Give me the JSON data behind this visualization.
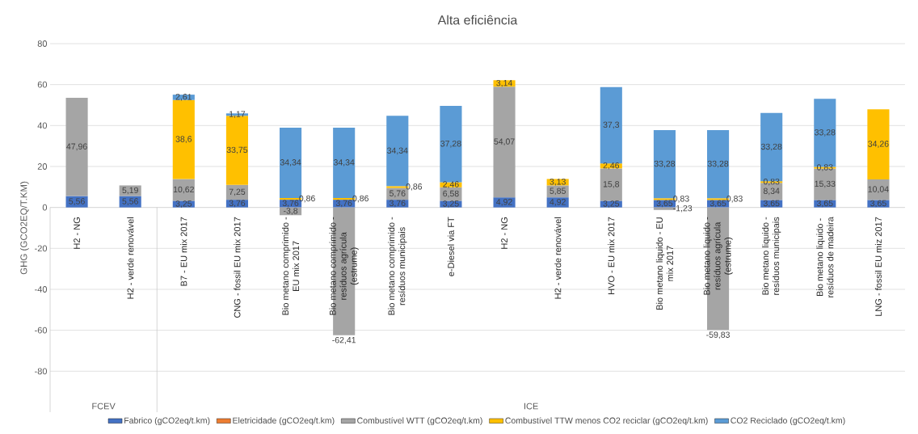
{
  "chart_data": {
    "type": "bar",
    "title": "Alta eficiência",
    "ylabel": "GHG (GCO2EQ/T.KM)",
    "stacked": true,
    "grid": "y",
    "legend": "bottom",
    "categories": [
      "H2 - NG",
      "H2 - verde renovável",
      "B7 - EU mix 2017",
      "CNG - fossil EU mix 2017",
      "Bio metano comprimido - EU mix 2017",
      "Bio metano comprimido - resíduos agrícula (estrume)",
      "Bio metano comprimido - resíduos municipais",
      "e-Diesel via FT",
      "H2 - NG",
      "H2 - verde renovável",
      "HVO - EU mix 2017",
      "Bio metano liquido - EU mix 2017",
      "Bio metano liquido - resíduos agrícula (estrume)",
      "Bio metano liquido - resíduos municipais",
      "Bio metano liquido - resíduos de madeira",
      "LNG - fossil EU miz 2017"
    ],
    "ylim": [
      -100,
      80
    ],
    "yticks": [
      -80,
      -60,
      -40,
      -20,
      0,
      20,
      40,
      60,
      80
    ],
    "annotations": [
      "FCEV",
      "ICE"
    ],
    "series": [
      {
        "name": "Fabrico (gCO2eq/t.km)",
        "color": "#4472c4",
        "values": [
          5.56,
          5.56,
          3.25,
          3.76,
          3.76,
          3.76,
          3.76,
          3.25,
          4.92,
          4.92,
          3.25,
          3.65,
          3.65,
          3.65,
          3.65,
          3.65
        ],
        "value_labels": [
          "5,56",
          "5,56",
          "3,25",
          "3,76",
          "3,76",
          "3,76",
          "3,76",
          "3,25",
          "4,92",
          "4,92",
          "3,25",
          "3,65",
          "3,65",
          "3,65",
          "3,65",
          "3,65"
        ]
      },
      {
        "name": "Eletricidade (gCO2eq/t.km)",
        "color": "#ed7d31",
        "values": [
          null,
          null,
          null,
          null,
          null,
          null,
          null,
          null,
          null,
          null,
          null,
          null,
          null,
          null,
          null,
          null
        ]
      },
      {
        "name": "Combustível WTT (gCO2eq/t.km)",
        "color": "#a5a5a5",
        "values": [
          47.96,
          5.19,
          10.62,
          7.25,
          -3.8,
          -62.41,
          5.76,
          6.58,
          54.07,
          5.85,
          15.8,
          -1.23,
          -59.83,
          8.34,
          15.33,
          10.04
        ],
        "value_labels": [
          "47,96",
          "5,19",
          "10,62",
          "7,25",
          "-3,8",
          "-62,41",
          "5,76",
          "6,58",
          "54,07",
          "5,85",
          "15,8",
          "-1,23",
          "-59,83",
          "8,34",
          "15,33",
          "10,04"
        ]
      },
      {
        "name": "Combustível TTW menos CO2 reciclar (gCO2eq/t.km)",
        "color": "#ffc000",
        "values": [
          null,
          null,
          38.6,
          33.75,
          0.86,
          0.86,
          0.86,
          2.46,
          3.14,
          3.13,
          2.46,
          0.83,
          0.83,
          0.83,
          0.83,
          34.26
        ],
        "value_labels": [
          null,
          null,
          "38,6",
          "33,75",
          "0,86",
          "0,86",
          "0,86",
          "2,46",
          "3,14",
          "3,13",
          "2,46",
          "0,83",
          "0,83",
          "0,83",
          "0,83",
          "34,26"
        ]
      },
      {
        "name": "CO2 Reciclado (gCO2eq/t.km)",
        "color": "#5b9bd5",
        "values": [
          null,
          null,
          2.61,
          1.17,
          34.34,
          34.34,
          34.34,
          37.28,
          null,
          null,
          37.3,
          33.28,
          33.28,
          33.28,
          33.28,
          null
        ],
        "value_labels": [
          null,
          null,
          "2,61",
          "1,17",
          "34,34",
          "34,34",
          "34,34",
          "37,28",
          null,
          null,
          "37,3",
          "33,28",
          "33,28",
          "33,28",
          "33,28",
          null
        ]
      }
    ]
  }
}
